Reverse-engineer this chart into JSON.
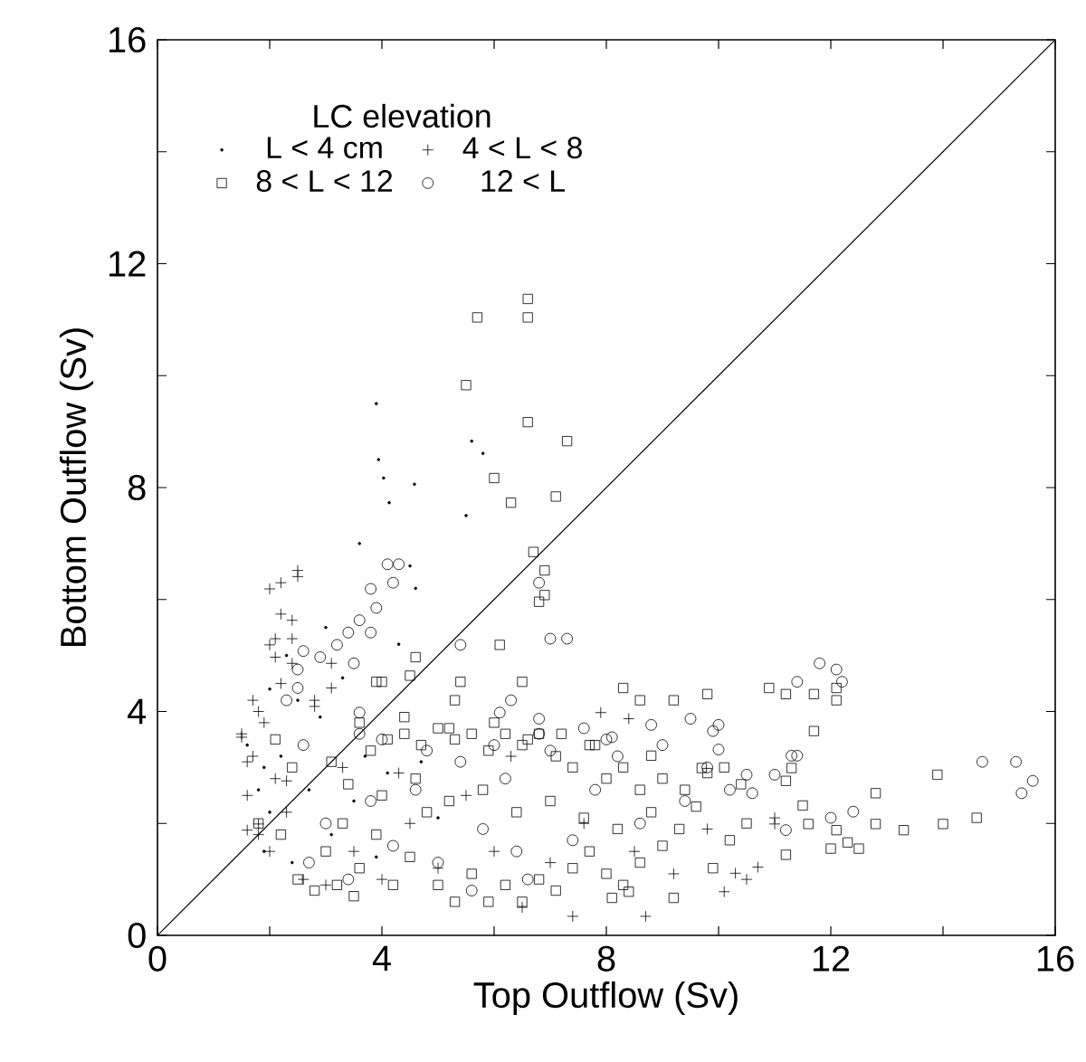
{
  "chart_data": {
    "type": "scatter",
    "xlabel": "Top Outflow (Sv)",
    "ylabel": "Bottom Outflow (Sv)",
    "legend_title": "LC elevation",
    "legend": "top left",
    "grid": false,
    "xlim": [
      0,
      16
    ],
    "ylim": [
      0,
      16
    ],
    "xticks": [
      0,
      {
        "value": 2,
        "label": null
      },
      4,
      {
        "value": 6,
        "label": null
      },
      8,
      {
        "value": 10,
        "label": null
      },
      12,
      {
        "value": 14,
        "label": null
      },
      16
    ],
    "yticks": [
      0,
      {
        "value": 2,
        "label": null
      },
      4,
      {
        "value": 6,
        "label": null
      },
      8,
      {
        "value": 10,
        "label": null
      },
      12,
      {
        "value": 14,
        "label": null
      },
      16
    ],
    "series": [
      {
        "name": "L < 4 cm",
        "color": "#000000",
        "marker": "dot",
        "x": [
          3.9,
          3.94,
          4.03,
          4.58,
          4.13,
          5.6,
          5.8,
          1.6,
          1.8,
          1.9,
          2.0,
          2.2,
          2.4,
          2.5,
          2.7,
          2.9,
          3.1,
          3.3,
          3.5,
          3.7,
          3.9,
          4.1,
          4.3,
          4.5,
          4.7,
          5.0,
          2.3,
          2.0,
          1.9,
          3.0,
          3.6,
          4.6,
          5.5
        ],
        "values": [
          9.5,
          8.5,
          8.17,
          8.06,
          7.73,
          8.83,
          8.61,
          3.4,
          2.6,
          1.5,
          2.2,
          3.2,
          1.3,
          4.2,
          2.6,
          3.9,
          1.8,
          4.6,
          2.4,
          3.2,
          1.4,
          2.9,
          5.2,
          6.6,
          3.1,
          2.1,
          5.0,
          4.4,
          3.0,
          5.5,
          7.0,
          6.2,
          7.5
        ]
      },
      {
        "name": "4 < L < 8",
        "color": "#000000",
        "marker": "cross",
        "x": [
          2.0,
          2.2,
          2.5,
          2.5,
          2.2,
          2.4,
          2.1,
          2.0,
          2.4,
          2.1,
          2.4,
          3.1,
          1.7,
          2.8,
          3.1,
          1.5,
          1.6,
          1.6,
          1.8,
          2.3,
          7.4,
          7.9,
          8.4,
          8.7,
          10.1,
          10.5,
          10.7,
          11.0,
          11.0,
          10.3,
          1.5,
          1.7,
          1.9,
          1.6,
          1.8,
          2.0,
          2.3,
          2.6,
          3.0,
          3.5,
          4.0,
          4.5,
          5.0,
          5.5,
          6.0,
          6.5,
          7.0,
          7.6,
          8.5,
          9.2,
          9.8,
          2.2,
          2.8,
          3.3,
          1.8,
          2.1,
          4.3,
          6.3
        ],
        "values": [
          6.19,
          6.3,
          6.52,
          6.41,
          5.74,
          5.63,
          5.3,
          5.19,
          5.3,
          4.97,
          4.86,
          4.86,
          4.2,
          4.09,
          4.42,
          3.54,
          3.1,
          1.88,
          1.99,
          2.76,
          0.34,
          3.98,
          3.87,
          0.34,
          0.78,
          1.0,
          1.22,
          1.99,
          2.1,
          1.11,
          3.6,
          3.2,
          3.8,
          2.5,
          1.8,
          1.5,
          2.2,
          1.0,
          0.9,
          1.5,
          1.0,
          2.0,
          1.2,
          2.5,
          1.5,
          0.5,
          1.3,
          2.0,
          1.5,
          1.1,
          1.9,
          4.5,
          4.2,
          3.0,
          4.0,
          2.8,
          2.9,
          3.2
        ]
      },
      {
        "name": "8 < L < 12",
        "color": "#000000",
        "marker": "square",
        "x": [
          6.6,
          6.6,
          5.7,
          5.5,
          6.6,
          7.3,
          6.0,
          6.3,
          7.1,
          6.7,
          6.9,
          6.8,
          6.9,
          6.1,
          4.6,
          4.5,
          3.9,
          4.0,
          5.4,
          6.5,
          5.3,
          8.3,
          8.6,
          9.2,
          9.8,
          10.9,
          11.2,
          11.7,
          12.1,
          12.1,
          11.7,
          8.8,
          9.7,
          11.3,
          11.2,
          12.8,
          13.9,
          11.5,
          11.6,
          12.8,
          13.3,
          14.0,
          14.6,
          11.2,
          12.0,
          12.3,
          12.5,
          12.1,
          9.2,
          8.4,
          8.1,
          2.5,
          2.8,
          3.2,
          3.5,
          3.0,
          3.3,
          3.6,
          3.9,
          4.2,
          4.5,
          4.8,
          5.0,
          5.3,
          5.6,
          5.9,
          6.2,
          6.5,
          6.8,
          7.1,
          7.4,
          7.7,
          8.0,
          8.3,
          8.6,
          9.0,
          9.3,
          9.6,
          9.9,
          10.2,
          10.5,
          3.1,
          3.4,
          3.8,
          4.1,
          4.4,
          4.7,
          5.0,
          5.3,
          5.6,
          5.9,
          6.2,
          6.5,
          6.8,
          7.1,
          7.4,
          7.7,
          8.0,
          8.3,
          8.6,
          9.0,
          9.4,
          9.8,
          10.1,
          10.4,
          4.0,
          4.6,
          5.2,
          5.8,
          6.4,
          7.0,
          7.6,
          8.2,
          8.8,
          1.8,
          2.1,
          2.4,
          2.2,
          3.6,
          4.4,
          5.2,
          6.0,
          6.6,
          7.2,
          7.8
        ],
        "values": [
          11.37,
          11.04,
          11.04,
          9.83,
          9.17,
          8.83,
          8.17,
          7.73,
          7.84,
          6.85,
          6.52,
          5.96,
          6.08,
          5.19,
          4.97,
          4.64,
          4.53,
          4.53,
          4.53,
          4.53,
          4.2,
          4.42,
          4.2,
          4.2,
          4.31,
          4.42,
          4.31,
          4.31,
          4.2,
          4.42,
          3.65,
          3.21,
          2.99,
          2.99,
          2.76,
          2.54,
          2.87,
          2.32,
          1.99,
          1.99,
          1.88,
          1.99,
          2.1,
          1.44,
          1.55,
          1.66,
          1.55,
          1.88,
          0.67,
          0.78,
          0.67,
          1.0,
          0.8,
          0.9,
          0.7,
          1.5,
          2.0,
          1.2,
          1.8,
          0.9,
          1.4,
          2.2,
          0.9,
          0.6,
          1.1,
          0.6,
          0.9,
          0.6,
          1.0,
          0.8,
          1.2,
          1.5,
          1.1,
          0.9,
          1.3,
          1.6,
          1.9,
          2.3,
          1.2,
          1.7,
          2.0,
          3.1,
          2.7,
          3.3,
          3.5,
          3.6,
          3.4,
          3.7,
          3.5,
          3.6,
          3.3,
          3.6,
          3.4,
          3.6,
          3.2,
          3.0,
          3.4,
          2.8,
          3.0,
          2.6,
          2.8,
          2.6,
          2.9,
          3.0,
          2.7,
          2.5,
          2.8,
          2.4,
          2.6,
          2.2,
          2.4,
          2.1,
          1.9,
          2.2,
          2.0,
          3.5,
          3.0,
          1.8,
          3.8,
          3.9,
          3.7,
          3.8,
          3.5,
          3.6,
          3.4
        ]
      },
      {
        "name": "12 < L",
        "color": "#000000",
        "marker": "circle",
        "x": [
          4.1,
          4.3,
          4.2,
          3.8,
          3.9,
          3.6,
          3.4,
          3.8,
          3.2,
          2.6,
          2.9,
          3.5,
          2.5,
          2.5,
          2.3,
          5.4,
          6.8,
          7.0,
          7.3,
          3.6,
          6.1,
          6.3,
          6.8,
          11.8,
          12.1,
          12.2,
          11.4,
          8.8,
          9.5,
          10.0,
          9.9,
          10.0,
          11.3,
          11.4,
          11.0,
          10.5,
          10.6,
          12.4,
          12.0,
          11.2,
          14.7,
          15.3,
          15.6,
          15.4,
          8.1,
          2.7,
          3.0,
          3.4,
          3.8,
          4.2,
          4.6,
          5.0,
          5.4,
          5.8,
          6.2,
          6.6,
          7.0,
          7.4,
          7.8,
          8.2,
          8.6,
          9.0,
          9.4,
          9.8,
          10.2,
          4.0,
          4.8,
          6.0,
          6.8,
          7.6,
          2.6,
          5.6,
          6.4,
          3.6,
          8.0
        ],
        "values": [
          6.63,
          6.63,
          6.3,
          6.19,
          5.85,
          5.63,
          5.41,
          5.41,
          5.19,
          5.08,
          4.97,
          4.86,
          4.75,
          4.42,
          4.2,
          5.19,
          6.3,
          5.3,
          5.3,
          3.98,
          3.98,
          4.2,
          3.87,
          4.86,
          4.75,
          4.53,
          4.53,
          3.76,
          3.87,
          3.76,
          3.65,
          3.32,
          3.21,
          3.21,
          2.87,
          2.87,
          2.54,
          2.21,
          2.1,
          1.88,
          3.1,
          3.1,
          2.76,
          2.54,
          3.54,
          1.3,
          2.0,
          1.0,
          2.4,
          1.6,
          2.6,
          1.3,
          3.1,
          1.9,
          2.8,
          1.0,
          3.3,
          1.7,
          2.6,
          3.2,
          2.0,
          3.4,
          2.4,
          3.0,
          2.6,
          3.5,
          3.3,
          3.4,
          3.6,
          3.7,
          3.4,
          0.8,
          1.5,
          3.6,
          3.5
        ]
      },
      {
        "type": "line",
        "color": "#000000",
        "marker": "none",
        "x": [
          0,
          16
        ],
        "values": [
          0,
          16
        ]
      }
    ]
  }
}
